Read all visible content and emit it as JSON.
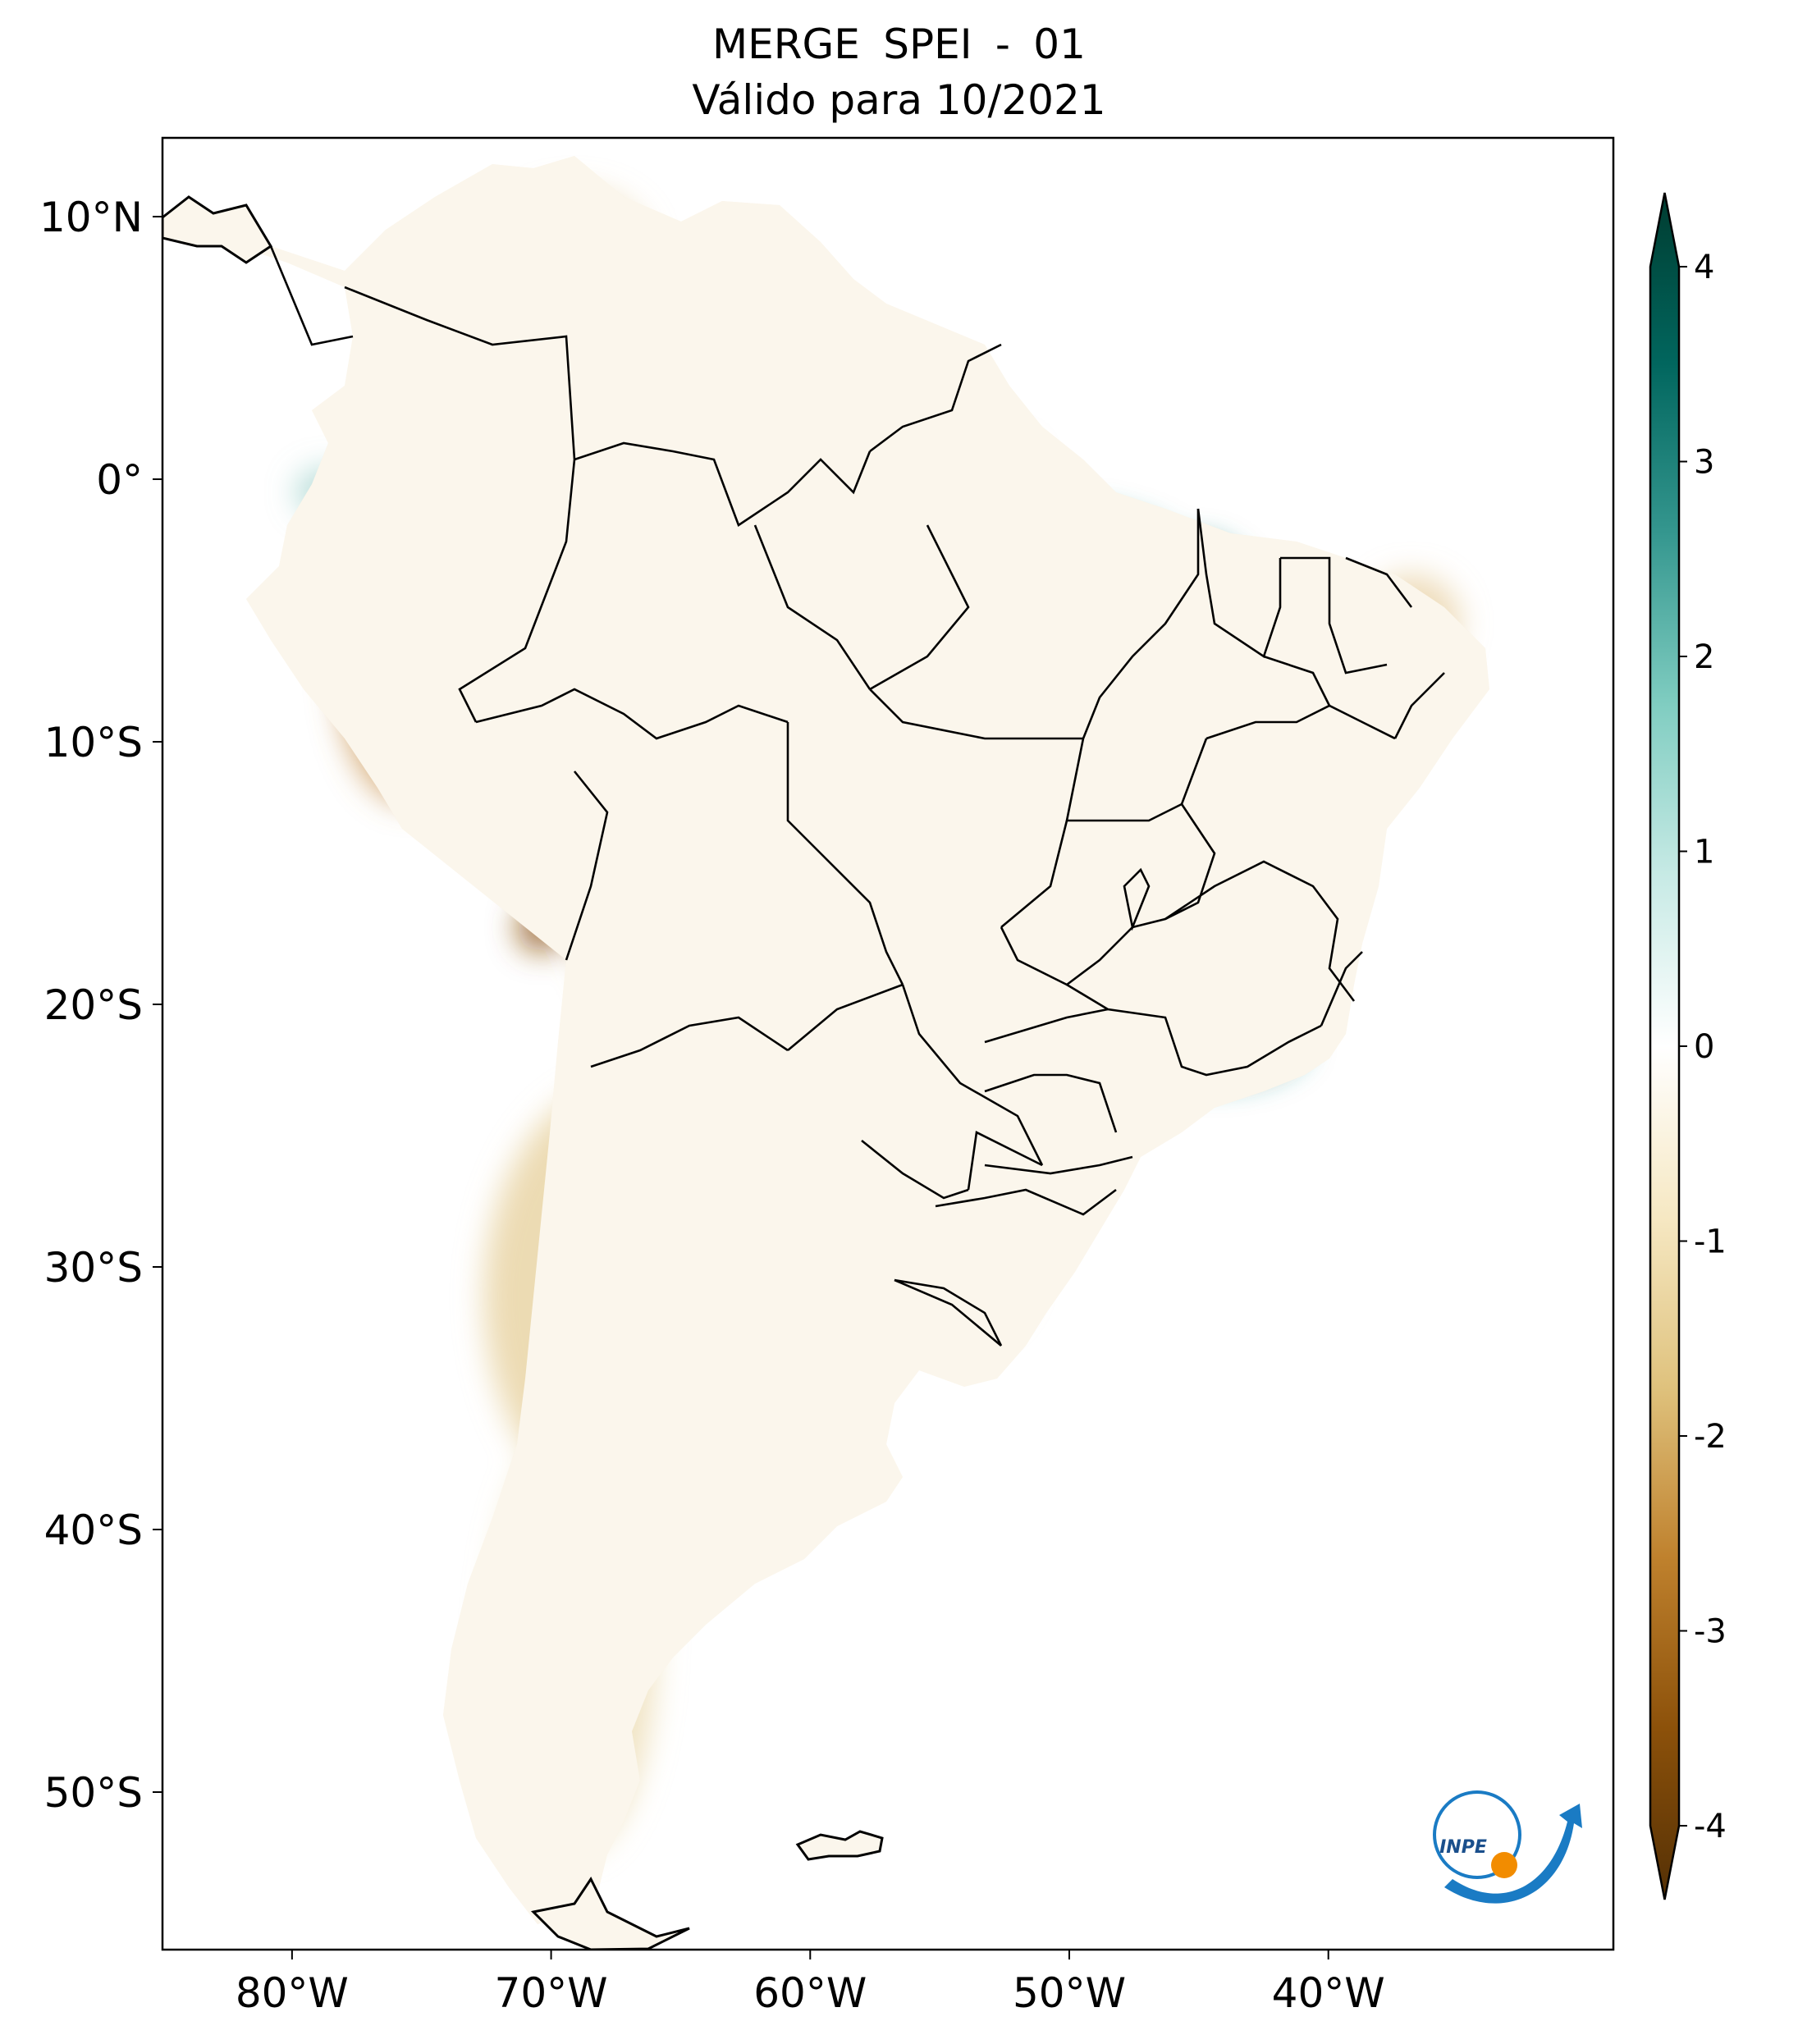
{
  "title": {
    "line1": "MERGE   SPEI - 01",
    "line2": "Válido para 10/2021"
  },
  "map": {
    "lon_range": [
      -85,
      -29
    ],
    "lat_range": [
      -56,
      13
    ],
    "lon_ticks": [
      {
        "value": -80,
        "label": "80°W"
      },
      {
        "value": -70,
        "label": "70°W"
      },
      {
        "value": -60,
        "label": "60°W"
      },
      {
        "value": -50,
        "label": "50°W"
      },
      {
        "value": -40,
        "label": "40°W"
      }
    ],
    "lat_ticks": [
      {
        "value": 10,
        "label": "10°N"
      },
      {
        "value": 0,
        "label": "0°"
      },
      {
        "value": -10,
        "label": "10°S"
      },
      {
        "value": -20,
        "label": "20°S"
      },
      {
        "value": -30,
        "label": "30°S"
      },
      {
        "value": -40,
        "label": "40°S"
      },
      {
        "value": -50,
        "label": "50°S"
      }
    ]
  },
  "colorbar": {
    "min": -4,
    "max": 4,
    "ticks": [
      {
        "value": 4,
        "label": "4"
      },
      {
        "value": 3,
        "label": "3"
      },
      {
        "value": 2,
        "label": "2"
      },
      {
        "value": 1,
        "label": "1"
      },
      {
        "value": 0,
        "label": "0"
      },
      {
        "value": -1,
        "label": "-1"
      },
      {
        "value": -2,
        "label": "-2"
      },
      {
        "value": -3,
        "label": "-3"
      },
      {
        "value": -4,
        "label": "-4"
      }
    ],
    "colors": [
      "#543005",
      "#8c510a",
      "#bf812d",
      "#dfc27d",
      "#f6e8c3",
      "#ffffff",
      "#c7eae5",
      "#80cdc1",
      "#35978f",
      "#01665e",
      "#003c30"
    ]
  },
  "logo": {
    "text": "INPE",
    "colors": {
      "blue": "#1a7bc4",
      "orange": "#f28c00"
    }
  }
}
